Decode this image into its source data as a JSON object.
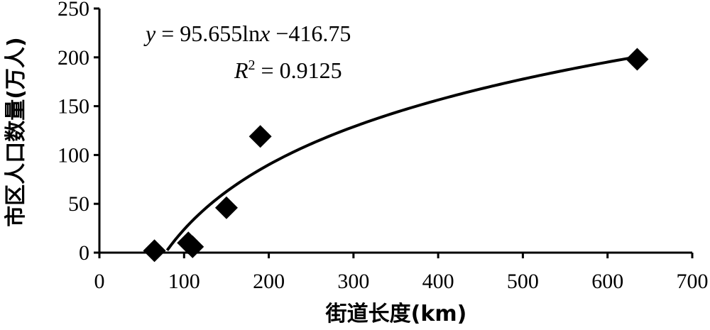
{
  "chart_data": {
    "type": "scatter",
    "xlabel": "街道长度(km)",
    "ylabel": "市区人口数量(万人)",
    "xlim": [
      0,
      700
    ],
    "ylim": [
      0,
      250
    ],
    "x_ticks": [
      "0",
      "100",
      "200",
      "300",
      "400",
      "500",
      "600",
      "700"
    ],
    "y_ticks": [
      "0",
      "50",
      "100",
      "150",
      "200",
      "250"
    ],
    "grid": false,
    "points": [
      {
        "x": 65,
        "y": 2
      },
      {
        "x": 105,
        "y": 10
      },
      {
        "x": 110,
        "y": 6
      },
      {
        "x": 150,
        "y": 46
      },
      {
        "x": 190,
        "y": 119
      },
      {
        "x": 635,
        "y": 198
      }
    ],
    "trendline": {
      "type": "logarithmic",
      "a": 95.655,
      "b": -416.75,
      "x_range": [
        80,
        635
      ]
    },
    "annotations": {
      "equation": "y = 95.655lnx −416.75",
      "equation_y": "y",
      "equation_body": " = 95.655ln",
      "equation_x": "x",
      "equation_tail": " −416.75",
      "r2": "R² = 0.9125",
      "r2_r": "R",
      "r2_sup": "2",
      "r2_tail": " = 0.9125"
    },
    "marker": "diamond",
    "marker_color": "#000000",
    "line_color": "#000000"
  }
}
